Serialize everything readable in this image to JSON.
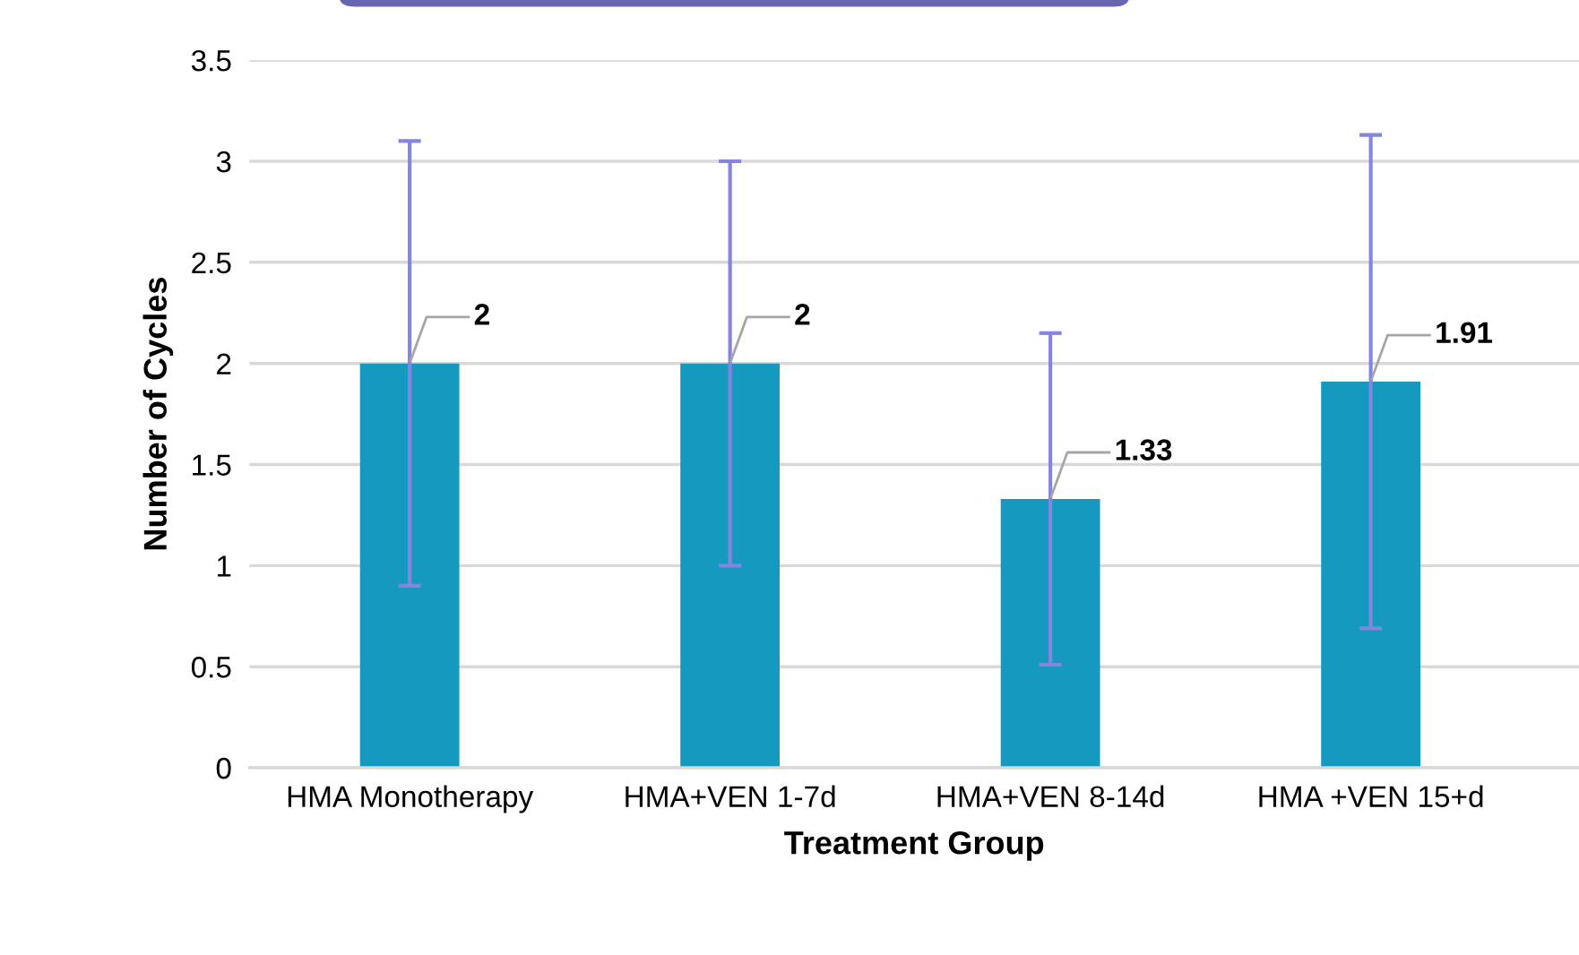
{
  "chart_data": {
    "type": "bar",
    "xlabel": "Treatment Group",
    "ylabel": "Number of Cycles",
    "categories": [
      "HMA Monotherapy",
      "HMA+VEN 1-7d",
      "HMA+VEN 8-14d",
      "HMA +VEN 15+d"
    ],
    "values": [
      2,
      2,
      1.33,
      1.91
    ],
    "errors": [
      1.1,
      1.0,
      0.82,
      1.22
    ],
    "color": "#1699bf",
    "ylim": [
      0,
      3.5
    ],
    "yticks": [
      0,
      0.5,
      1,
      1.5,
      2,
      2.5,
      3,
      3.5
    ],
    "grid": "y",
    "data_labels": true
  }
}
